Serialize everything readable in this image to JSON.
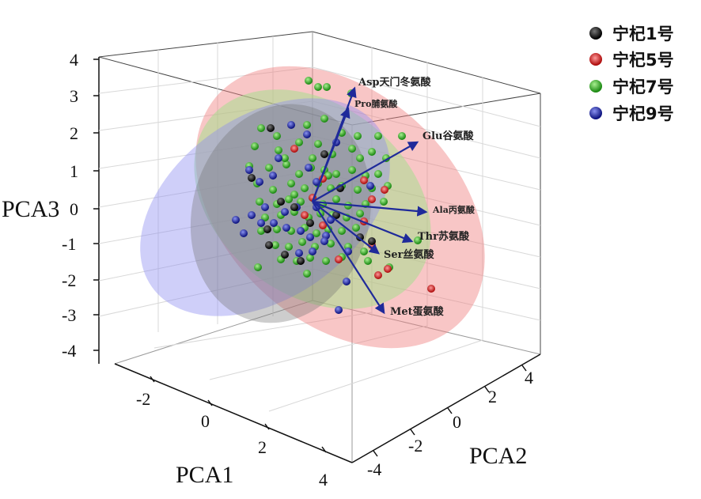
{
  "chart_data": {
    "type": "scatter",
    "axes": {
      "x": {
        "label": "PCA1",
        "ticks": [
          "-2",
          "0",
          "2",
          "4"
        ]
      },
      "y": {
        "label": "PCA2",
        "ticks": [
          "-4",
          "-2",
          "0",
          "2",
          "4"
        ]
      },
      "z": {
        "label": "PCA3",
        "ticks": [
          "4",
          "3",
          "2",
          "1",
          "0",
          "-1",
          "-2",
          "-3",
          "-4"
        ]
      }
    },
    "series": [
      {
        "name": "宁杞1号",
        "color": "#111111"
      },
      {
        "name": "宁杞5号",
        "color": "#d8282a"
      },
      {
        "name": "宁杞7号",
        "color": "#3fba2e"
      },
      {
        "name": "宁杞9号",
        "color": "#2a34b0"
      }
    ],
    "loadings": [
      {
        "label": "Asp天门冬氨酸"
      },
      {
        "label": "Pro脯氨酸"
      },
      {
        "label": "Glu谷氨酸"
      },
      {
        "label": "Ala丙氨酸"
      },
      {
        "label": "Thr苏氨酸"
      },
      {
        "label": "Ser丝氨酸"
      },
      {
        "label": "Met蛋氨酸"
      }
    ],
    "grid": true,
    "legend_position": "top-right"
  }
}
